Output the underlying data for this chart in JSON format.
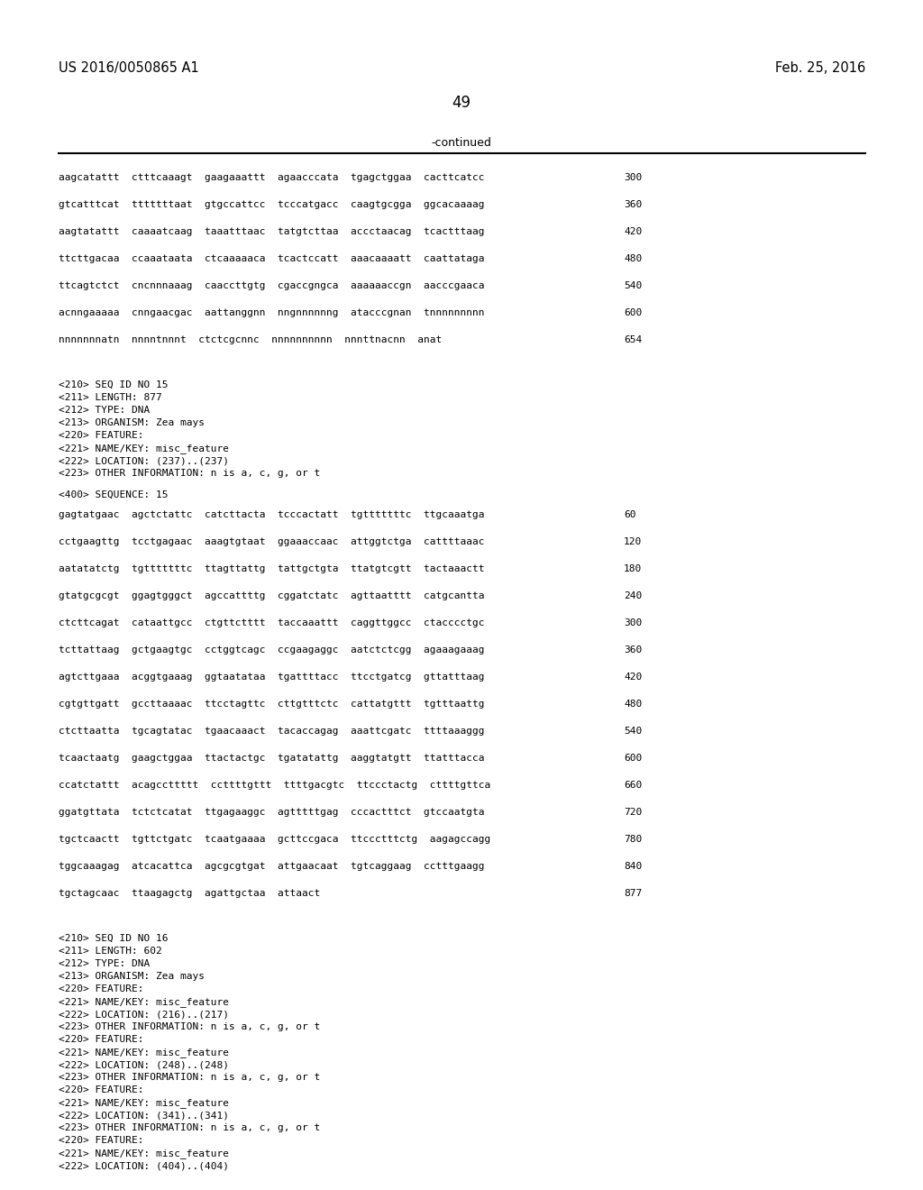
{
  "header_left": "US 2016/0050865 A1",
  "header_right": "Feb. 25, 2016",
  "page_number": "49",
  "continued_label": "-continued",
  "background_color": "#ffffff",
  "text_color": "#000000",
  "font_size_header": 10.5,
  "font_size_body": 8.0,
  "font_size_page": 12,
  "lines": [
    {
      "text": "aagcatattt  ctttcaaagt  gaagaaattt  agaacccata  tgagctggaa  cacttcatcc",
      "num": "300"
    },
    {
      "text": "gtcatttcat  tttttttaat  gtgccattcc  tcccatgacc  caagtgcgga  ggcacaaaag",
      "num": "360"
    },
    {
      "text": "aagtatattt  caaaatcaag  taaatttaac  tatgtcttaa  accctaacag  tcactttaag",
      "num": "420"
    },
    {
      "text": "ttcttgacaa  ccaaataata  ctcaaaaaca  tcactccatt  aaacaaaatt  caattataga",
      "num": "480"
    },
    {
      "text": "ttcagtctct  cncnnnaaag  caaccttgtg  cgaccgngca  aaaaaaccgn  aacccgaaca",
      "num": "540"
    },
    {
      "text": "acnngaaaaa  cnngaacgac  aattanggnn  nngnnnnnng  atacccgnan  tnnnnnnnnn",
      "num": "600"
    },
    {
      "text": "nnnnnnnatn  nnnntnnnt  ctctcgcnnc  nnnnnnnnnn  nnnttnacnn  anat",
      "num": "654"
    }
  ],
  "seq15_header": [
    "<210> SEQ ID NO 15",
    "<211> LENGTH: 877",
    "<212> TYPE: DNA",
    "<213> ORGANISM: Zea mays",
    "<220> FEATURE:",
    "<221> NAME/KEY: misc_feature",
    "<222> LOCATION: (237)..(237)",
    "<223> OTHER INFORMATION: n is a, c, g, or t"
  ],
  "seq15_label": "<400> SEQUENCE: 15",
  "seq15_lines": [
    {
      "text": "gagtatgaac  agctctattc  catcttacta  tcccactatt  tgtttttttc  ttgcaaatga",
      "num": "60"
    },
    {
      "text": "cctgaagttg  tcctgagaac  aaagtgtaat  ggaaaccaac  attggtctga  cattttaaac",
      "num": "120"
    },
    {
      "text": "aatatatctg  tgtttttttc  ttagttattg  tattgctgta  ttatgtcgtt  tactaaactt",
      "num": "180"
    },
    {
      "text": "gtatgcgcgt  ggagtgggct  agccattttg  cggatctatc  agttaatttt  catgcantta",
      "num": "240"
    },
    {
      "text": "ctcttcagat  cataattgcc  ctgttctttt  taccaaattt  caggttggcc  ctacccctgc",
      "num": "300"
    },
    {
      "text": "tcttattaag  gctgaagtgc  cctggtcagc  ccgaagaggc  aatctctcgg  agaaagaaag",
      "num": "360"
    },
    {
      "text": "agtcttgaaa  acggtgaaag  ggtaatataa  tgattttacc  ttcctgatcg  gttatttaag",
      "num": "420"
    },
    {
      "text": "cgtgttgatt  gccttaaaac  ttcctagttc  cttgtttctc  cattatgttt  tgtttaattg",
      "num": "480"
    },
    {
      "text": "ctcttaatta  tgcagtatac  tgaacaaact  tacaccagag  aaattcgatc  ttttaaaggg",
      "num": "540"
    },
    {
      "text": "tcaactaatg  gaagctggaa  ttactactgc  tgatatattg  aaggtatgtt  ttatttacca",
      "num": "600"
    },
    {
      "text": "ccatctattt  acagccttttt  ccttttgttt  ttttgacgtc  ttccctactg  cttttgttca",
      "num": "660"
    },
    {
      "text": "ggatgttata  tctctcatat  ttgagaaggc  agtttttgag  cccactttct  gtccaatgta",
      "num": "720"
    },
    {
      "text": "tgctcaactt  tgttctgatc  tcaatgaaaa  gcttccgaca  ttccctttctg  aagagccagg",
      "num": "780"
    },
    {
      "text": "tggcaaagag  atcacattca  agcgcgtgat  attgaacaat  tgtcaggaag  cctttgaagg",
      "num": "840"
    },
    {
      "text": "tgctagcaac  ttaagagctg  agattgctaa  attaact",
      "num": "877"
    }
  ],
  "seq16_header": [
    "<210> SEQ ID NO 16",
    "<211> LENGTH: 602",
    "<212> TYPE: DNA",
    "<213> ORGANISM: Zea mays",
    "<220> FEATURE:",
    "<221> NAME/KEY: misc_feature",
    "<222> LOCATION: (216)..(217)",
    "<223> OTHER INFORMATION: n is a, c, g, or t",
    "<220> FEATURE:",
    "<221> NAME/KEY: misc_feature",
    "<222> LOCATION: (248)..(248)",
    "<223> OTHER INFORMATION: n is a, c, g, or t",
    "<220> FEATURE:",
    "<221> NAME/KEY: misc_feature",
    "<222> LOCATION: (341)..(341)",
    "<223> OTHER INFORMATION: n is a, c, g, or t",
    "<220> FEATURE:",
    "<221> NAME/KEY: misc_feature",
    "<222> LOCATION: (404)..(404)"
  ]
}
